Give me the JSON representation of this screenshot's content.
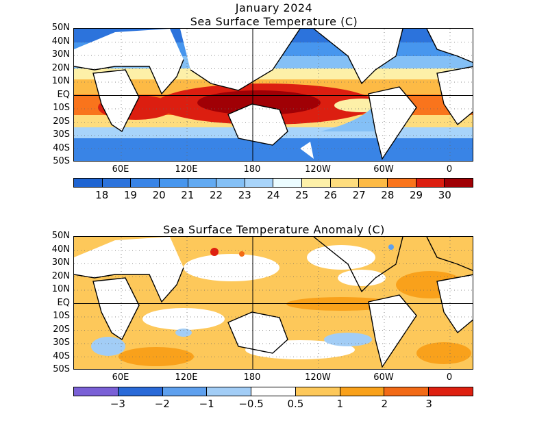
{
  "header": {
    "line1": "January 2024",
    "line2": "Sea Surface Temperature (C)"
  },
  "anomaly_title": "Sea Surface Temperature Anomaly (C)",
  "lat_labels": [
    "50N",
    "40N",
    "30N",
    "20N",
    "10N",
    "EQ",
    "10S",
    "20S",
    "30S",
    "40S",
    "50S"
  ],
  "lon_labels": [
    "60E",
    "120E",
    "180",
    "120W",
    "60W",
    "0"
  ],
  "sst_colorbar": {
    "labels": [
      "18",
      "19",
      "20",
      "21",
      "22",
      "23",
      "24",
      "25",
      "26",
      "27",
      "28",
      "29",
      "30"
    ],
    "colors": [
      "#1e64d2",
      "#2c73dc",
      "#3984e6",
      "#4796ee",
      "#62aaf2",
      "#84c0f6",
      "#a8d4fa",
      "#ecfcff",
      "#fdf0a8",
      "#fedd7e",
      "#fdba45",
      "#f9741c",
      "#dc1e10",
      "#a00005"
    ]
  },
  "anom_colorbar": {
    "labels": [
      "−3",
      "−2",
      "−1",
      "−0.5",
      "0.5",
      "1",
      "2",
      "3"
    ],
    "colors": [
      "#7a60d6",
      "#2a6ad8",
      "#5ea0ee",
      "#a2cdf6",
      "#ffffff",
      "#fdc85a",
      "#f9a11b",
      "#f26a16",
      "#de2010"
    ]
  }
}
